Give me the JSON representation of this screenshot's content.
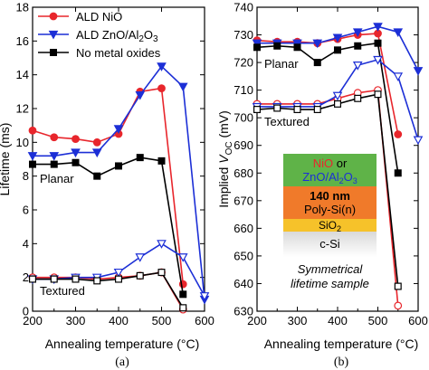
{
  "chart_data": [
    {
      "id": "a",
      "type": "line",
      "panel_label": "(a)",
      "xlabel": "Annealing temperature (°C)",
      "ylabel": "Lifetime (ms)",
      "xlim": [
        200,
        600
      ],
      "ylim": [
        0,
        18
      ],
      "xticks": [
        200,
        300,
        400,
        500,
        600
      ],
      "yticks": [
        0,
        2,
        4,
        6,
        8,
        10,
        12,
        14,
        16,
        18
      ],
      "x_tick_labels": [
        "200",
        "300",
        "400",
        "500",
        "600"
      ],
      "y_tick_labels": [
        "0",
        "2",
        "4",
        "6",
        "8",
        "10",
        "12",
        "14",
        "16",
        "18"
      ],
      "legend_position": "top-left",
      "series": [
        {
          "name": "ALD NiO",
          "group": "Planar",
          "marker": "circle",
          "filled": true,
          "color": "#e8262c",
          "x": [
            200,
            250,
            300,
            350,
            400,
            450,
            500,
            550
          ],
          "y": [
            10.7,
            10.3,
            10.2,
            10.0,
            10.5,
            13.0,
            13.2,
            1.6
          ]
        },
        {
          "name": "ALD ZnO/Al2O3",
          "group": "Planar",
          "marker": "triangle-down",
          "filled": true,
          "color": "#1c2fd6",
          "x": [
            200,
            250,
            300,
            350,
            400,
            450,
            500,
            550,
            600
          ],
          "y": [
            9.2,
            9.2,
            9.4,
            9.4,
            10.8,
            12.8,
            14.5,
            13.3,
            0.7
          ]
        },
        {
          "name": "No metal oxides",
          "group": "Planar",
          "marker": "square",
          "filled": true,
          "color": "#000000",
          "x": [
            200,
            250,
            300,
            350,
            400,
            450,
            500,
            550
          ],
          "y": [
            8.7,
            8.7,
            8.8,
            8.0,
            8.6,
            9.1,
            8.9,
            1.0
          ]
        },
        {
          "group": "Textured",
          "marker": "circle",
          "filled": false,
          "color": "#e8262c",
          "x": [
            200,
            250,
            300,
            350,
            400,
            450,
            500,
            550
          ],
          "y": [
            2.0,
            2.0,
            2.0,
            1.9,
            2.0,
            2.1,
            2.3,
            0.1
          ]
        },
        {
          "group": "Textured",
          "marker": "triangle-down",
          "filled": false,
          "color": "#1c2fd6",
          "x": [
            200,
            250,
            300,
            350,
            400,
            450,
            500,
            550,
            600
          ],
          "y": [
            1.9,
            1.9,
            2.0,
            2.0,
            2.3,
            3.2,
            4.0,
            3.2,
            0.9
          ]
        },
        {
          "group": "Textured",
          "marker": "square",
          "filled": false,
          "color": "#000000",
          "x": [
            200,
            250,
            300,
            350,
            400,
            450,
            500,
            550
          ],
          "y": [
            1.9,
            1.9,
            1.9,
            1.8,
            1.9,
            2.1,
            2.3,
            0.2
          ]
        }
      ],
      "labels": {
        "planar": "Planar",
        "textured": "Textured"
      }
    },
    {
      "id": "b",
      "type": "line",
      "panel_label": "(b)",
      "xlabel": "Annealing temperature (°C)",
      "ylabel": "Implied V",
      "ylabel_sub": "OC",
      "ylabel_unit": " (mV)",
      "xlim": [
        200,
        600
      ],
      "ylim": [
        630,
        740
      ],
      "xticks": [
        200,
        300,
        400,
        500,
        600
      ],
      "yticks": [
        630,
        640,
        650,
        660,
        670,
        680,
        690,
        700,
        710,
        720,
        730,
        740
      ],
      "x_tick_labels": [
        "200",
        "300",
        "400",
        "500",
        "600"
      ],
      "y_tick_labels": [
        "630",
        "640",
        "650",
        "660",
        "670",
        "680",
        "690",
        "700",
        "710",
        "720",
        "730",
        "740"
      ],
      "series": [
        {
          "group": "Planar",
          "marker": "circle",
          "filled": true,
          "color": "#e8262c",
          "x": [
            200,
            250,
            300,
            350,
            400,
            450,
            500,
            550
          ],
          "y": [
            728,
            727.5,
            727.5,
            727,
            728.5,
            730,
            730.5,
            694
          ]
        },
        {
          "group": "Planar",
          "marker": "triangle-down",
          "filled": true,
          "color": "#1c2fd6",
          "x": [
            200,
            250,
            300,
            350,
            400,
            450,
            500,
            550,
            600
          ],
          "y": [
            727,
            727,
            727,
            727,
            729,
            731,
            733,
            731,
            717
          ]
        },
        {
          "group": "Planar",
          "marker": "square",
          "filled": true,
          "color": "#000000",
          "x": [
            200,
            250,
            300,
            350,
            400,
            450,
            500,
            550
          ],
          "y": [
            725.5,
            726,
            725.5,
            720,
            724.5,
            726,
            727,
            680
          ]
        },
        {
          "group": "Textured",
          "marker": "circle",
          "filled": false,
          "color": "#e8262c",
          "x": [
            200,
            250,
            300,
            350,
            400,
            450,
            500,
            550
          ],
          "y": [
            705,
            705,
            705,
            705,
            707,
            709,
            710,
            632
          ]
        },
        {
          "group": "Textured",
          "marker": "triangle-down",
          "filled": false,
          "color": "#1c2fd6",
          "x": [
            200,
            250,
            300,
            350,
            400,
            450,
            500,
            550,
            600
          ],
          "y": [
            704,
            704,
            704,
            704,
            708,
            719,
            721,
            715,
            692
          ]
        },
        {
          "group": "Textured",
          "marker": "square",
          "filled": false,
          "color": "#000000",
          "x": [
            200,
            250,
            300,
            350,
            400,
            450,
            500,
            550
          ],
          "y": [
            703,
            703.5,
            703,
            703,
            705,
            707,
            708.5,
            639
          ]
        }
      ],
      "labels": {
        "planar": "Planar",
        "textured": "Textured"
      },
      "inset": {
        "layers": [
          {
            "parts": [
              "NiO",
              " or"
            ],
            "part_colors": [
              "#e8262c",
              "#000000"
            ],
            "line2": "ZnO/Al",
            "line2_sub": "2",
            "line2_tail": "O",
            "line2_tail_sub": "3",
            "fill": "#5fb348",
            "text_color": "#1c2fd6"
          },
          {
            "text": "140 nm",
            "text2": "Poly-Si(n)",
            "fill": "#f07a2a",
            "text_color": "#000000"
          },
          {
            "text": "SiO",
            "sub": "2",
            "fill": "#f6c22a",
            "text_color": "#000000"
          },
          {
            "text": "c-Si",
            "fill": "#d9d9d9",
            "text_color": "#000000"
          }
        ],
        "caption_line1": "Symmetrical",
        "caption_line2": "lifetime sample"
      }
    }
  ]
}
